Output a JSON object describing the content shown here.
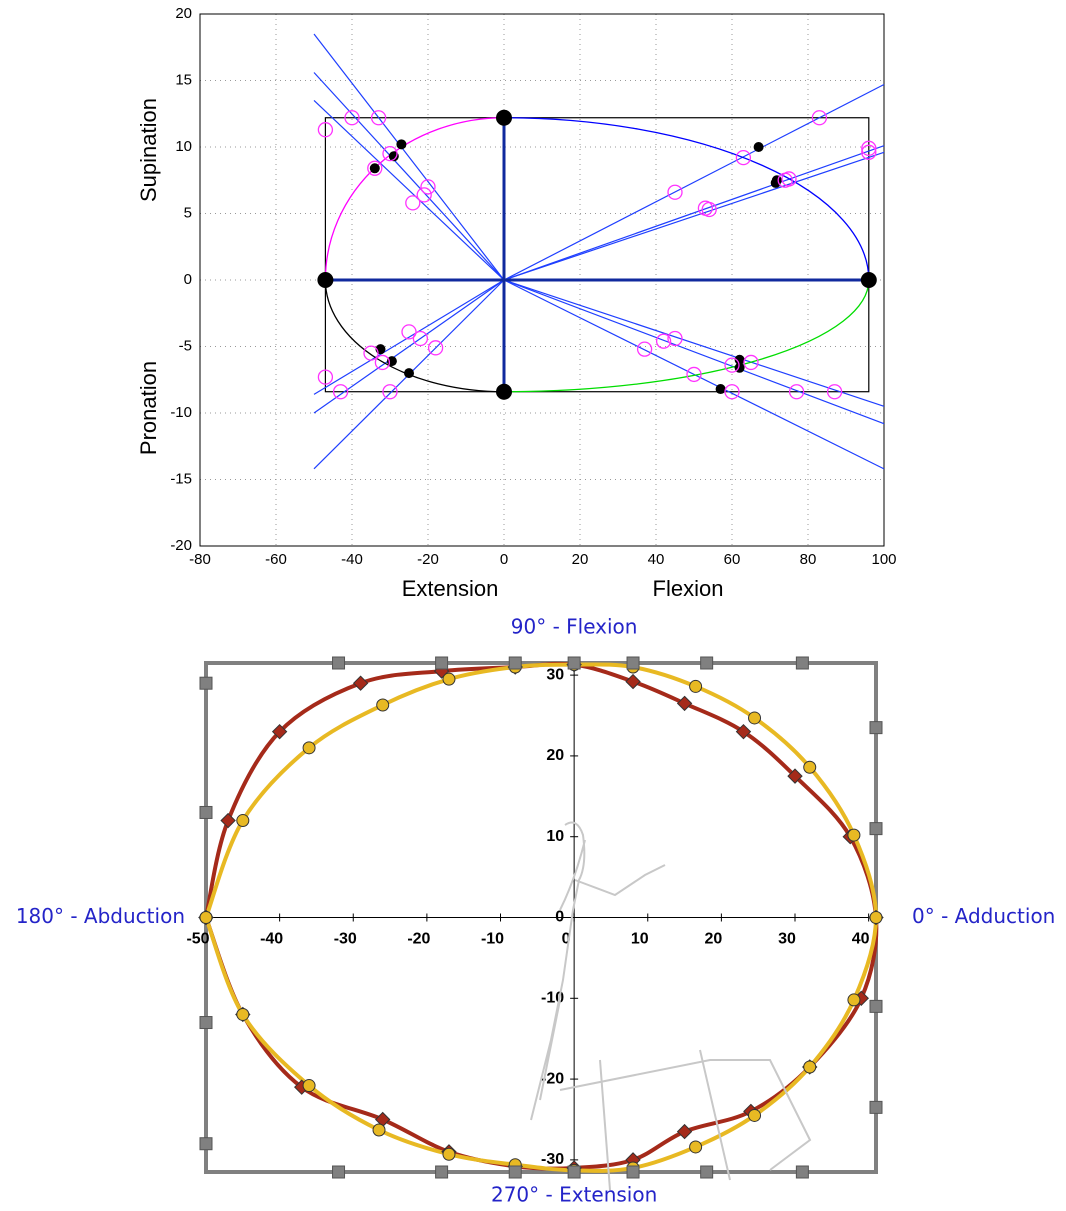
{
  "chart_data": [
    {
      "type": "geometry",
      "xlabels": [
        "Extension",
        "Flexion"
      ],
      "ylabels": [
        "Supination",
        "Pronation"
      ],
      "xlim": [
        -80,
        100
      ],
      "xticks": [
        -80,
        -60,
        -40,
        -20,
        0,
        20,
        40,
        60,
        80,
        100
      ],
      "ylim": [
        -20,
        20
      ],
      "yticks": [
        -20,
        -15,
        -10,
        -5,
        0,
        5,
        10,
        15,
        20
      ],
      "grid": true,
      "rect": {
        "x": [
          -47,
          96
        ],
        "y": [
          -8.4,
          12.2
        ],
        "color": "#000000"
      },
      "arcs": [
        {
          "color": "#ff00ff",
          "x": [
            -47,
            0
          ],
          "y": [
            0,
            12.2
          ]
        },
        {
          "color": "#0000ff",
          "x": [
            0,
            96
          ],
          "y": [
            12.2,
            0
          ]
        },
        {
          "color": "#00dd00",
          "x": [
            96,
            0
          ],
          "y": [
            0,
            -8.4
          ]
        },
        {
          "color": "#000000",
          "x": [
            0,
            -47
          ],
          "y": [
            -8.4,
            0
          ]
        }
      ],
      "rays": {
        "color": "#1f3fff",
        "x": [
          -50,
          -50,
          -50,
          -50,
          -50,
          -50,
          100,
          100,
          100,
          100,
          100,
          100
        ],
        "y": [
          18.5,
          15.6,
          13.5,
          -14.2,
          -10,
          -8.6,
          14.7,
          10.1,
          9.6,
          -14.2,
          -10.8,
          -9.5
        ]
      },
      "poles": {
        "color": "#000000",
        "x": [
          -47,
          0,
          96,
          0
        ],
        "y": [
          0,
          12.2,
          0,
          -8.4
        ]
      },
      "series": [
        {
          "marker": "dot",
          "color": "#000000",
          "x": [
            -34,
            -29,
            -27,
            67,
            71.5,
            71.8,
            -32.5,
            -29.5,
            -25,
            62,
            62,
            57
          ],
          "y": [
            8.4,
            9.3,
            10.2,
            10,
            7.3,
            7.5,
            -5.2,
            -6.1,
            -7,
            -6,
            -6.6,
            -8.2
          ]
        },
        {
          "marker": "ring",
          "color": "#ff33ff",
          "x": [
            -47,
            -40,
            -33,
            -30,
            -34,
            -24,
            -21,
            -20,
            45,
            53,
            54,
            63,
            74,
            75,
            83,
            96,
            96,
            -47,
            -43,
            -35,
            -32,
            -30,
            -25,
            -22,
            -18,
            37,
            42,
            45,
            50,
            60,
            60,
            65,
            77,
            87
          ],
          "y": [
            11.3,
            12.2,
            12.2,
            9.5,
            8.4,
            5.8,
            6.4,
            7,
            6.6,
            5.4,
            5.3,
            9.2,
            7.5,
            7.6,
            12.2,
            9.6,
            9.9,
            -7.3,
            -8.4,
            -5.5,
            -6.2,
            -8.4,
            -3.9,
            -4.4,
            -5.1,
            -5.2,
            -4.6,
            -4.4,
            -7.1,
            -6.4,
            -8.4,
            -6.2,
            -8.4,
            -8.4
          ]
        }
      ]
    },
    {
      "type": "polar-loop",
      "annotations": [
        "90° - Flexion",
        "180° - Abduction",
        "0° - Adduction",
        "270° - Extension"
      ],
      "xlim": [
        -50,
        41
      ],
      "xticks": [
        -50,
        -40,
        -30,
        -20,
        -10,
        0,
        10,
        20,
        30,
        40
      ],
      "ylim": [
        -31.5,
        31.5
      ],
      "yticks": [
        -30,
        -20,
        -10,
        0,
        10,
        20,
        30
      ],
      "frame": {
        "x": [
          -50,
          41
        ],
        "y": [
          -31.5,
          31.5
        ],
        "color": "#808080"
      },
      "series": [
        {
          "marker": "diamond",
          "color": "#a52a1a",
          "x": [
            -50,
            -47,
            -40,
            -29,
            -18,
            -8,
            0,
            8,
            15,
            23,
            30,
            37.5,
            41,
            39,
            32,
            24,
            15,
            8,
            0,
            -8,
            -17,
            -26,
            -37,
            -45,
            -50
          ],
          "y": [
            0,
            12,
            23,
            29,
            30.5,
            31,
            31.3,
            29.2,
            26.5,
            23,
            17.5,
            10,
            0,
            -10,
            -18.5,
            -24,
            -26.5,
            -30,
            -31,
            -30.8,
            -29,
            -25,
            -21,
            -12,
            0
          ]
        },
        {
          "marker": "circle",
          "color": "#e8b923",
          "x": [
            -50,
            -45,
            -36,
            -26,
            -17,
            -8,
            0,
            8,
            16.5,
            24.5,
            32,
            38,
            41,
            38,
            32,
            24.5,
            16.5,
            8,
            0,
            -8,
            -17,
            -26.5,
            -36,
            -45,
            -50
          ],
          "y": [
            0,
            12,
            21,
            26.3,
            29.5,
            31,
            31.3,
            31,
            28.6,
            24.7,
            18.6,
            10.2,
            0,
            -10.2,
            -18.5,
            -24.5,
            -28.4,
            -31,
            -31.3,
            -30.6,
            -29.3,
            -26.3,
            -20.8,
            -12,
            0
          ]
        },
        {
          "marker": "square",
          "color": "#808080",
          "x": [
            -50,
            -50,
            -50,
            -50,
            41,
            41,
            41,
            41,
            -32,
            -18,
            -8,
            0,
            8,
            18,
            31,
            -32,
            -18,
            -8,
            0,
            8,
            18,
            31
          ],
          "y": [
            29,
            13,
            -13,
            -28,
            23.5,
            11,
            -11,
            -23.5,
            31.5,
            31.5,
            31.5,
            31.5,
            31.5,
            31.5,
            31.5,
            -31.5,
            -31.5,
            -31.5,
            -31.5,
            -31.5,
            -31.5,
            -31.5
          ]
        }
      ]
    }
  ]
}
